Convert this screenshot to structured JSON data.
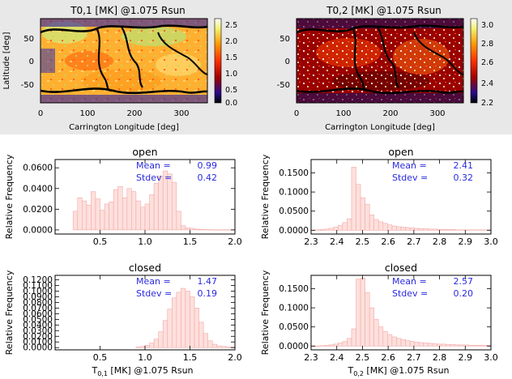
{
  "maps": [
    {
      "title": "T0,1 [MK] @1.075 Rsun",
      "ylabel": "Latitude [deg]",
      "xlabel": "Carrington Longitude [deg]",
      "xticks": [
        "0",
        "100",
        "200",
        "300"
      ],
      "yticks": [
        "50",
        "0",
        "-50"
      ],
      "colorbar_ticks": [
        "2.5",
        "2.0",
        "1.5",
        "1.0",
        "0.5",
        "0.0"
      ],
      "colorbar_range": [
        0.0,
        2.5
      ]
    },
    {
      "title": "T0,2 [MK] @1.075 Rsun",
      "ylabel": "",
      "xlabel": "Carrington Longitude [deg]",
      "xticks": [
        "0",
        "100",
        "200",
        "300"
      ],
      "yticks": [
        "50",
        "0",
        "-50"
      ],
      "colorbar_ticks": [
        "3.0",
        "2.8",
        "2.6",
        "2.4",
        "2.2"
      ],
      "colorbar_range": [
        2.2,
        3.0
      ]
    }
  ],
  "chart_data": [
    {
      "type": "bar",
      "title": "open",
      "ylabel": "Relative Frequency",
      "xlabel": "",
      "xlim": [
        0.0,
        2.0
      ],
      "ylim": [
        -0.004,
        0.068
      ],
      "xtick_labels": [
        "0.5",
        "1.0",
        "1.5",
        "2.0"
      ],
      "xtick_values": [
        0.5,
        1.0,
        1.5,
        2.0
      ],
      "ytick_labels": [
        "0.0000",
        "0.0200",
        "0.0400",
        "0.0600"
      ],
      "ytick_values": [
        0.0,
        0.02,
        0.04,
        0.06
      ],
      "bin_start": 0.2,
      "bin_width": 0.05,
      "values": [
        0.018,
        0.031,
        0.028,
        0.024,
        0.037,
        0.03,
        0.019,
        0.025,
        0.027,
        0.039,
        0.042,
        0.031,
        0.04,
        0.037,
        0.028,
        0.022,
        0.025,
        0.034,
        0.045,
        0.052,
        0.057,
        0.054,
        0.046,
        0.018,
        0.004,
        0.002,
        0.0015,
        0.0008,
        0.0005,
        0.0003,
        0.0002,
        0.0001,
        0.0001,
        0.0001,
        0.0001,
        0.0001
      ],
      "stats": {
        "mean_label": "Mean =",
        "mean_value": "0.99",
        "stdev_label": "Stdev =",
        "stdev_value": "0.42"
      }
    },
    {
      "type": "bar",
      "title": "open",
      "ylabel": "Relative Frequency",
      "xlabel": "",
      "xlim": [
        2.3,
        3.0
      ],
      "ylim": [
        -0.01,
        0.185
      ],
      "xtick_labels": [
        "2.3",
        "2.4",
        "2.5",
        "2.6",
        "2.7",
        "2.8",
        "2.9",
        "3.0"
      ],
      "xtick_values": [
        2.3,
        2.4,
        2.5,
        2.6,
        2.7,
        2.8,
        2.9,
        3.0
      ],
      "ytick_labels": [
        "0.0000",
        "0.0500",
        "0.1000",
        "0.1500"
      ],
      "ytick_values": [
        0.0,
        0.05,
        0.1,
        0.15
      ],
      "bin_start": 2.3,
      "bin_width": 0.0175,
      "values": [
        0.0,
        0.001,
        0.002,
        0.003,
        0.005,
        0.008,
        0.013,
        0.02,
        0.03,
        0.165,
        0.12,
        0.085,
        0.068,
        0.04,
        0.028,
        0.022,
        0.018,
        0.014,
        0.011,
        0.009,
        0.008,
        0.007,
        0.006,
        0.005,
        0.004,
        0.004,
        0.003,
        0.003,
        0.002,
        0.002,
        0.002,
        0.002,
        0.001,
        0.001,
        0.001,
        0.001,
        0.001,
        0.001,
        0.001,
        0.001
      ],
      "stats": {
        "mean_label": "Mean =",
        "mean_value": "2.41",
        "stdev_label": "Stdev =",
        "stdev_value": "0.32"
      }
    },
    {
      "type": "bar",
      "title": "closed",
      "ylabel": "Relative Frequency",
      "xlabel": "T",
      "xlabel_sub": "0,1",
      "xlabel_rest": " [MK] @1.075 Rsun",
      "xlim": [
        0.0,
        2.0
      ],
      "ylim": [
        -0.004,
        0.128
      ],
      "xtick_labels": [
        "0.5",
        "1.0",
        "1.5",
        "2.0"
      ],
      "xtick_values": [
        0.5,
        1.0,
        1.5,
        2.0
      ],
      "ytick_labels": [
        "0.0000",
        "0.0100",
        "0.0200",
        "0.0300",
        "0.0400",
        "0.0500",
        "0.0600",
        "0.0700",
        "0.0800",
        "0.0900",
        "0.1000",
        "0.1100",
        "0.1200"
      ],
      "ytick_values": [
        0.0,
        0.01,
        0.02,
        0.03,
        0.04,
        0.05,
        0.06,
        0.07,
        0.08,
        0.09,
        0.1,
        0.11,
        0.12
      ],
      "bin_start": 0.9,
      "bin_width": 0.05,
      "values": [
        0.001,
        0.002,
        0.004,
        0.008,
        0.015,
        0.028,
        0.048,
        0.068,
        0.088,
        0.098,
        0.105,
        0.1,
        0.09,
        0.07,
        0.045,
        0.025,
        0.012,
        0.006,
        0.003,
        0.002,
        0.001,
        0.001
      ],
      "stats": {
        "mean_label": "Mean =",
        "mean_value": "1.47",
        "stdev_label": "Stdev =",
        "stdev_value": "0.19"
      }
    },
    {
      "type": "bar",
      "title": "closed",
      "ylabel": "Relative Frequency",
      "xlabel": "T",
      "xlabel_sub": "0,2",
      "xlabel_rest": " [MK] @1.075 Rsun",
      "xlim": [
        2.3,
        3.0
      ],
      "ylim": [
        -0.01,
        0.185
      ],
      "xtick_labels": [
        "2.3",
        "2.4",
        "2.5",
        "2.6",
        "2.7",
        "2.8",
        "2.9",
        "3.0"
      ],
      "xtick_values": [
        2.3,
        2.4,
        2.5,
        2.6,
        2.7,
        2.8,
        2.9,
        3.0
      ],
      "ytick_labels": [
        "0.0000",
        "0.0500",
        "0.1000",
        "0.1500"
      ],
      "ytick_values": [
        0.0,
        0.05,
        0.1,
        0.15
      ],
      "bin_start": 2.3,
      "bin_width": 0.0175,
      "values": [
        0.0,
        0.0,
        0.001,
        0.002,
        0.003,
        0.005,
        0.008,
        0.012,
        0.02,
        0.045,
        0.175,
        0.178,
        0.14,
        0.1,
        0.07,
        0.05,
        0.038,
        0.03,
        0.024,
        0.02,
        0.017,
        0.014,
        0.012,
        0.01,
        0.009,
        0.008,
        0.007,
        0.006,
        0.005,
        0.005,
        0.004,
        0.004,
        0.003,
        0.003,
        0.003,
        0.002,
        0.002,
        0.002,
        0.002,
        0.002
      ],
      "stats": {
        "mean_label": "Mean =",
        "mean_value": "2.57",
        "stdev_label": "Stdev =",
        "stdev_value": "0.20"
      }
    }
  ],
  "colors": {
    "bar_fill": "#fde0dc",
    "bar_stroke": "#f2a8a8",
    "stats_text": "#2a2ae0",
    "text": "#000000",
    "panel_bg": "#e8e8e8"
  }
}
